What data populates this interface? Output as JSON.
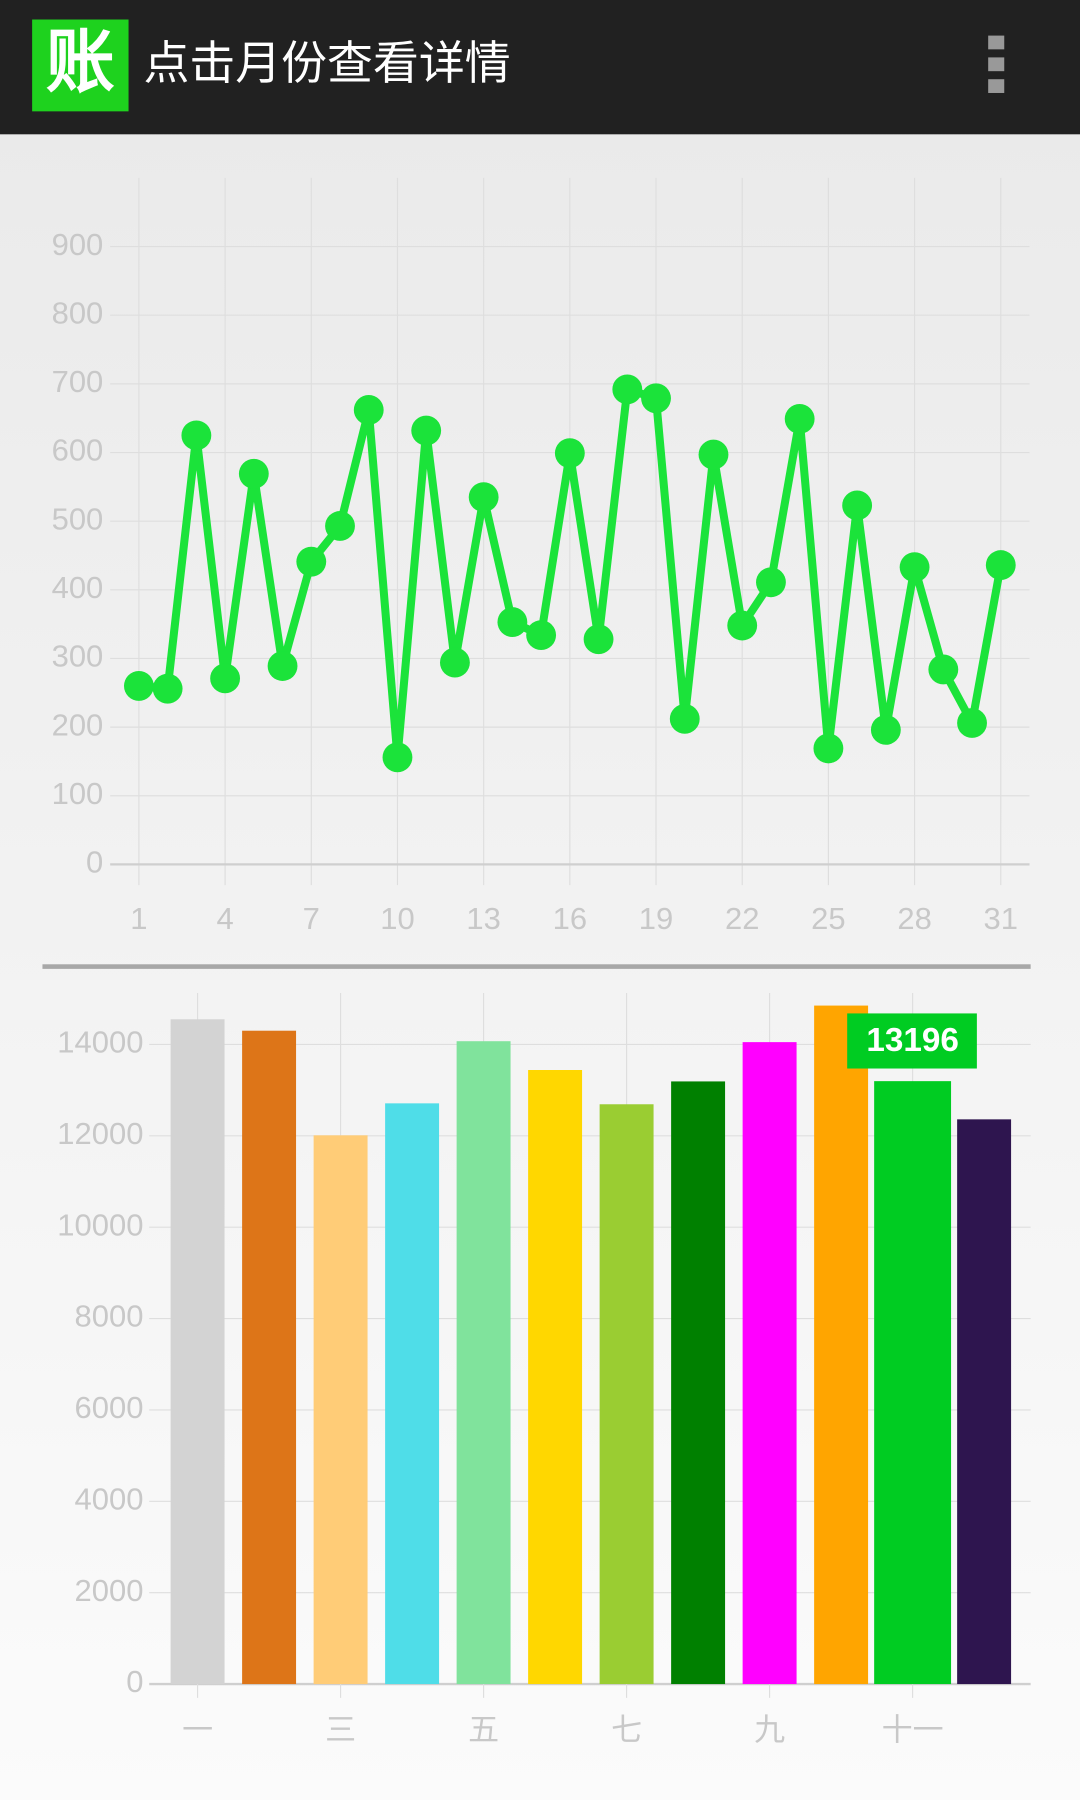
{
  "app_bar": {
    "icon": "账",
    "title": "点击月份查看详情"
  },
  "chart_data": [
    {
      "type": "line",
      "color": "#1be33a",
      "grid": true,
      "x": [
        1,
        2,
        3,
        4,
        5,
        6,
        7,
        8,
        9,
        10,
        11,
        12,
        13,
        14,
        15,
        16,
        17,
        18,
        19,
        20,
        21,
        22,
        23,
        24,
        25,
        26,
        27,
        28,
        29,
        30,
        31
      ],
      "values": [
        260,
        256,
        625,
        271,
        569,
        289,
        441,
        493,
        662,
        156,
        632,
        294,
        535,
        353,
        334,
        599,
        328,
        692,
        679,
        212,
        597,
        348,
        411,
        649,
        169,
        523,
        196,
        433,
        284,
        206,
        436
      ],
      "xlim": [
        0,
        32
      ],
      "xticks": [
        1,
        4,
        7,
        10,
        13,
        16,
        19,
        22,
        25,
        28,
        31
      ],
      "ylim": [
        0,
        1000
      ],
      "yticks": [
        0,
        100,
        200,
        300,
        400,
        500,
        600,
        700,
        800,
        900
      ]
    },
    {
      "type": "bar",
      "grid": true,
      "categories": [
        "一",
        null,
        "三",
        null,
        "五",
        null,
        "七",
        null,
        "九",
        null,
        "十一",
        null
      ],
      "values": [
        14550,
        14300,
        12010,
        12710,
        14070,
        13440,
        12690,
        13190,
        14050,
        14850,
        13196,
        12360
      ],
      "colors": [
        "#d3d3d3",
        "#dd7518",
        "#ffcc77",
        "#4fdde8",
        "#80e39c",
        "#ffd700",
        "#9acd32",
        "#008000",
        "#ff00ff",
        "#ffa500",
        "#00cc22",
        "#2e154f"
      ],
      "highlight": 10,
      "ylim": [
        0,
        15000
      ],
      "yticks": [
        0,
        2000,
        4000,
        6000,
        8000,
        10000,
        12000,
        14000
      ]
    }
  ]
}
